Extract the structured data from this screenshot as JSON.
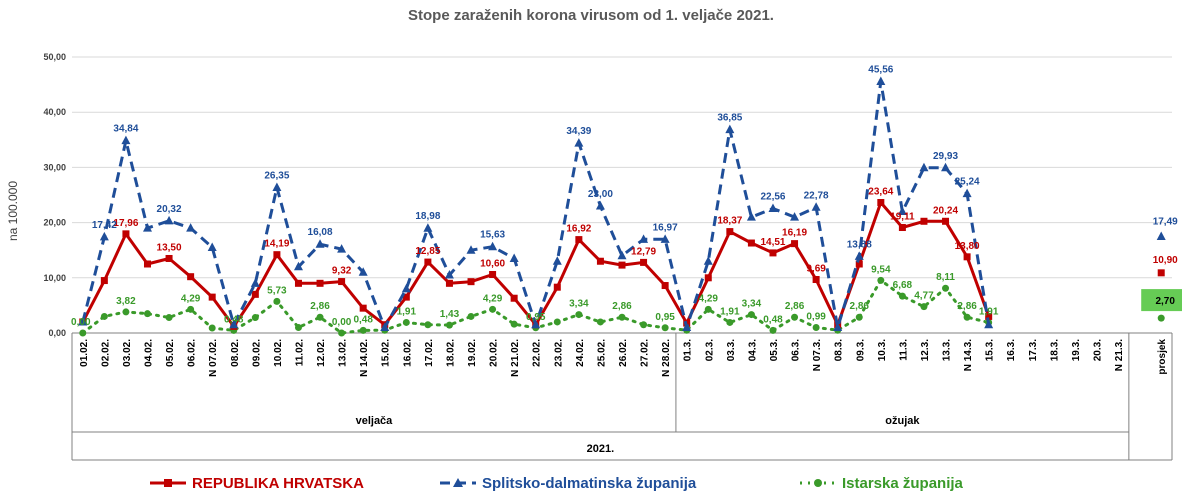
{
  "colors": {
    "hrvatska": "#c00000",
    "split": "#1f4e99",
    "istra": "#3a9a2a",
    "istra_avg_box": "#66cc55",
    "grid": "#d9d9d9",
    "axis": "#808080"
  },
  "chart_data": {
    "type": "line",
    "title": "Stope zaraženih korona virusom od 1. veljače 2021.",
    "ylabel": "na 100.000",
    "ylim": [
      0,
      50
    ],
    "yticks": [
      "0,00",
      "10,00",
      "20,00",
      "30,00",
      "40,00",
      "50,00"
    ],
    "categories": [
      "01.02.",
      "02.02.",
      "03.02.",
      "04.02.",
      "05.02.",
      "06.02.",
      "N 07.02.",
      "08.02.",
      "09.02.",
      "10.02.",
      "11.02.",
      "12.02.",
      "13.02.",
      "N 14.02.",
      "15.02.",
      "16.02.",
      "17.02.",
      "18.02.",
      "19.02.",
      "20.02.",
      "N 21.02.",
      "22.02.",
      "23.02.",
      "24.02.",
      "25.02.",
      "26.02.",
      "27.02.",
      "N 28.02.",
      "01.3.",
      "02.3.",
      "03.3.",
      "04.3.",
      "05.3.",
      "06.3.",
      "N 07.3.",
      "08.3.",
      "09.3.",
      "10.3.",
      "11.3.",
      "12.3.",
      "13.3.",
      "N 14.3.",
      "15.3.",
      "16.3.",
      "17.3.",
      "18.3.",
      "19.3.",
      "20.3.",
      "N 21.3.",
      "",
      "prosjek"
    ],
    "groups": [
      {
        "label": "veljača"
      },
      {
        "label": "ožujak"
      }
    ],
    "year_label": "2021.",
    "series": [
      {
        "name": "REPUBLIKA HRVATSKA",
        "values": [
          2.0,
          9.5,
          17.96,
          12.5,
          13.5,
          10.2,
          6.5,
          1.2,
          7.0,
          14.19,
          9.0,
          9.0,
          9.32,
          4.5,
          1.5,
          6.5,
          12.85,
          9.0,
          9.3,
          10.6,
          6.3,
          1.5,
          8.3,
          16.92,
          13.0,
          12.3,
          12.79,
          8.6,
          1.8,
          10.0,
          18.37,
          16.3,
          14.51,
          16.19,
          9.69,
          1.5,
          12.5,
          23.64,
          19.11,
          20.24,
          20.24,
          13.8,
          3.0,
          null,
          null,
          null,
          null,
          null,
          null,
          null,
          10.9
        ],
        "labels": {
          "2": "17,96",
          "4": "13,50",
          "9": "14,19",
          "12": "9,32",
          "16": "12,85",
          "19": "10,60",
          "23": "16,92",
          "26": "12,79",
          "30": "18,37",
          "32": "14,51",
          "33": "16,19",
          "34": "9,69",
          "37": "23,64",
          "38": "19,11",
          "40": "20,24",
          "41": "13,80",
          "50": "10,90"
        }
      },
      {
        "name": "Splitsko-dalmatinska županija",
        "values": [
          2.0,
          17.42,
          34.84,
          19.0,
          20.32,
          19.0,
          15.5,
          1.5,
          9.0,
          26.35,
          12.0,
          16.08,
          15.2,
          11.0,
          1.0,
          8.0,
          18.98,
          10.5,
          15.0,
          15.63,
          13.5,
          1.5,
          13.0,
          34.39,
          23.0,
          14.0,
          16.97,
          16.97,
          1.0,
          13.0,
          36.85,
          21.0,
          22.56,
          21.0,
          22.78,
          1.0,
          13.88,
          45.56,
          22.0,
          29.93,
          29.93,
          25.24,
          1.5,
          null,
          null,
          null,
          null,
          null,
          null,
          null,
          17.49
        ],
        "labels": {
          "1": "17,42",
          "2": "34,84",
          "4": "20,32",
          "9": "26,35",
          "11": "16,08",
          "16": "18,98",
          "19": "15,63",
          "23": "34,39",
          "24": "23,00",
          "27": "16,97",
          "30": "36,85",
          "32": "22,56",
          "34": "22,78",
          "36": "13,88",
          "37": "45,56",
          "40": "29,93",
          "41": "25,24",
          "50": "17,49"
        }
      },
      {
        "name": "Istarska županija",
        "values": [
          0.0,
          3.0,
          3.82,
          3.5,
          2.8,
          4.29,
          0.9,
          0.48,
          2.8,
          5.73,
          1.0,
          2.86,
          0.0,
          0.48,
          0.5,
          1.91,
          1.5,
          1.43,
          3.0,
          4.29,
          1.6,
          0.95,
          2.0,
          3.34,
          2.0,
          2.86,
          1.5,
          0.95,
          0.5,
          4.29,
          1.91,
          3.34,
          0.48,
          2.86,
          0.99,
          0.5,
          2.86,
          9.54,
          6.68,
          4.77,
          8.11,
          2.86,
          1.91,
          null,
          null,
          null,
          null,
          null,
          null,
          null,
          2.7
        ],
        "labels": {
          "0": "0,00",
          "2": "3,82",
          "5": "4,29",
          "7": "0,48",
          "9": "5,73",
          "11": "2,86",
          "12": "0,00",
          "13": "0,48",
          "15": "1,91",
          "17": "1,43",
          "19": "4,29",
          "21": "0,95",
          "23": "3,34",
          "25": "2,86",
          "27": "0,95",
          "29": "4,29",
          "30": "1,91",
          "31": "3,34",
          "32": "0,48",
          "33": "2,86",
          "34": "0,99",
          "36": "2,86",
          "37": "9,54",
          "38": "6,68",
          "39": "4,77",
          "40": "8,11",
          "41": "2,86",
          "42": "1,91",
          "50": "2,70"
        }
      }
    ],
    "legend_position": "bottom",
    "grid": true
  }
}
